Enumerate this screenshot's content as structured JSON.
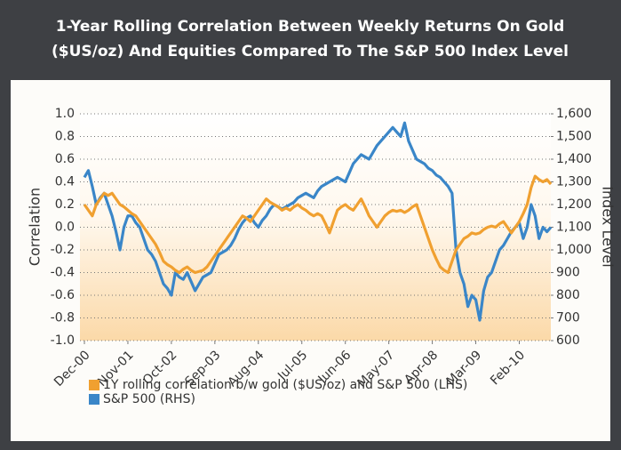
{
  "chart_data": {
    "type": "line",
    "title": "1-Year Rolling Correlation Between Weekly Returns On Gold",
    "subtitle": "($US/oz) And Equities Compared To The S&P 500 Index Level",
    "y_label": "Correlation",
    "y2_label": "Index Level",
    "x": [
      "Dec-00",
      "Jan-01",
      "Feb-01",
      "Mar-01",
      "Apr-01",
      "May-01",
      "Jun-01",
      "Jul-01",
      "Aug-01",
      "Sep-01",
      "Oct-01",
      "Nov-01",
      "Dec-01",
      "Jan-02",
      "Feb-02",
      "Mar-02",
      "Apr-02",
      "May-02",
      "Jun-02",
      "Jul-02",
      "Aug-02",
      "Sep-02",
      "Oct-02",
      "Nov-02",
      "Dec-02",
      "Jan-03",
      "Feb-03",
      "Mar-03",
      "Apr-03",
      "May-03",
      "Jun-03",
      "Jul-03",
      "Aug-03",
      "Sep-03",
      "Oct-03",
      "Nov-03",
      "Dec-03",
      "Jan-04",
      "Feb-04",
      "Mar-04",
      "Apr-04",
      "May-04",
      "Jun-04",
      "Jul-04",
      "Aug-04",
      "Sep-04",
      "Oct-04",
      "Nov-04",
      "Dec-04",
      "Jan-05",
      "Feb-05",
      "Mar-05",
      "Apr-05",
      "May-05",
      "Jun-05",
      "Jul-05",
      "Aug-05",
      "Sep-05",
      "Oct-05",
      "Nov-05",
      "Dec-05",
      "Jan-06",
      "Feb-06",
      "Mar-06",
      "Apr-06",
      "May-06",
      "Jun-06",
      "Jul-06",
      "Aug-06",
      "Sep-06",
      "Oct-06",
      "Nov-06",
      "Dec-06",
      "Jan-07",
      "Feb-07",
      "Mar-07",
      "Apr-07",
      "May-07",
      "Jun-07",
      "Jul-07",
      "Aug-07",
      "Sep-07",
      "Oct-07",
      "Nov-07",
      "Dec-07",
      "Jan-08",
      "Feb-08",
      "Mar-08",
      "Apr-08",
      "May-08",
      "Jun-08",
      "Jul-08",
      "Aug-08",
      "Sep-08",
      "Oct-08",
      "Nov-08",
      "Dec-08",
      "Jan-09",
      "Feb-09",
      "Mar-09",
      "Apr-09",
      "May-09",
      "Jun-09",
      "Jul-09",
      "Aug-09",
      "Sep-09",
      "Oct-09",
      "Nov-09",
      "Dec-09",
      "Jan-10",
      "Feb-10",
      "Mar-10",
      "Apr-10",
      "May-10",
      "Jun-10",
      "Jul-10",
      "Aug-10",
      "Sep-10",
      "Oct-10"
    ],
    "xticks": [
      "Dec-00",
      "Nov-01",
      "Oct-02",
      "Sep-03",
      "Aug-04",
      "Jul-05",
      "Jun-06",
      "May-07",
      "Apr-08",
      "Mar-09",
      "Feb-10"
    ],
    "series": [
      {
        "name": "1Y rolling correlation b/w gold ($US/oz) and S&P 500 (LHS)",
        "color": "#f0a030",
        "values": [
          0.2,
          0.15,
          0.1,
          0.2,
          0.25,
          0.3,
          0.28,
          0.3,
          0.25,
          0.2,
          0.18,
          0.15,
          0.12,
          0.1,
          0.05,
          0.0,
          -0.05,
          -0.1,
          -0.15,
          -0.22,
          -0.3,
          -0.33,
          -0.35,
          -0.38,
          -0.4,
          -0.37,
          -0.35,
          -0.38,
          -0.4,
          -0.39,
          -0.38,
          -0.35,
          -0.3,
          -0.25,
          -0.2,
          -0.15,
          -0.1,
          -0.05,
          0.0,
          0.05,
          0.1,
          0.08,
          0.05,
          0.1,
          0.15,
          0.2,
          0.25,
          0.22,
          0.2,
          0.18,
          0.15,
          0.17,
          0.15,
          0.18,
          0.2,
          0.17,
          0.15,
          0.12,
          0.1,
          0.12,
          0.1,
          0.03,
          -0.05,
          0.05,
          0.15,
          0.18,
          0.2,
          0.17,
          0.15,
          0.2,
          0.25,
          0.18,
          0.1,
          0.05,
          0.0,
          0.05,
          0.1,
          0.13,
          0.15,
          0.14,
          0.15,
          0.13,
          0.15,
          0.18,
          0.2,
          0.1,
          0.0,
          -0.1,
          -0.2,
          -0.28,
          -0.35,
          -0.38,
          -0.4,
          -0.3,
          -0.2,
          -0.15,
          -0.1,
          -0.08,
          -0.05,
          -0.06,
          -0.05,
          -0.02,
          0.0,
          0.01,
          0.0,
          0.03,
          0.05,
          0.0,
          -0.05,
          0.0,
          0.05,
          0.12,
          0.2,
          0.35,
          0.45,
          0.42,
          0.4,
          0.42,
          0.38
        ]
      },
      {
        "name": "S&P 500 (RHS)",
        "color": "#3a86c8",
        "axis": "y2",
        "values": [
          1320,
          1350,
          1280,
          1200,
          1230,
          1250,
          1200,
          1150,
          1080,
          1000,
          1100,
          1150,
          1150,
          1120,
          1100,
          1050,
          1000,
          980,
          950,
          900,
          850,
          830,
          800,
          900,
          880,
          870,
          900,
          860,
          820,
          850,
          880,
          890,
          900,
          940,
          980,
          990,
          1000,
          1020,
          1050,
          1090,
          1120,
          1140,
          1150,
          1120,
          1100,
          1130,
          1150,
          1180,
          1200,
          1190,
          1180,
          1190,
          1200,
          1210,
          1230,
          1240,
          1250,
          1240,
          1230,
          1260,
          1280,
          1290,
          1300,
          1310,
          1320,
          1310,
          1300,
          1340,
          1380,
          1400,
          1420,
          1410,
          1400,
          1430,
          1460,
          1480,
          1500,
          1520,
          1540,
          1520,
          1500,
          1560,
          1480,
          1440,
          1400,
          1390,
          1380,
          1360,
          1350,
          1330,
          1320,
          1300,
          1280,
          1250,
          1000,
          900,
          850,
          750,
          800,
          780,
          690,
          820,
          880,
          900,
          950,
          1000,
          1020,
          1050,
          1080,
          1100,
          1120,
          1050,
          1100,
          1200,
          1150,
          1050,
          1100,
          1080,
          1100
        ]
      }
    ],
    "ylim": [
      -1,
      1
    ],
    "yticks": [
      {
        "value": 1,
        "label": "1.0"
      },
      0.8,
      0.6,
      0.4,
      0.2,
      {
        "value": 0,
        "label": "0.0"
      },
      -0.2,
      -0.4,
      -0.6,
      -0.8,
      {
        "value": -1,
        "label": "-1.0"
      }
    ],
    "y2lim": [
      600,
      1600
    ],
    "y2ticks": [
      {
        "value": 1600,
        "label": "1,600"
      },
      {
        "value": 1500,
        "label": "1,500"
      },
      {
        "value": 1400,
        "label": "1,400"
      },
      {
        "value": 1300,
        "label": "1,300"
      },
      {
        "value": 1200,
        "label": "1,200"
      },
      {
        "value": 1100,
        "label": "1,100"
      },
      {
        "value": 1000,
        "label": "1,000"
      },
      900,
      800,
      700,
      600
    ],
    "grid": true,
    "legend": "bottom"
  }
}
